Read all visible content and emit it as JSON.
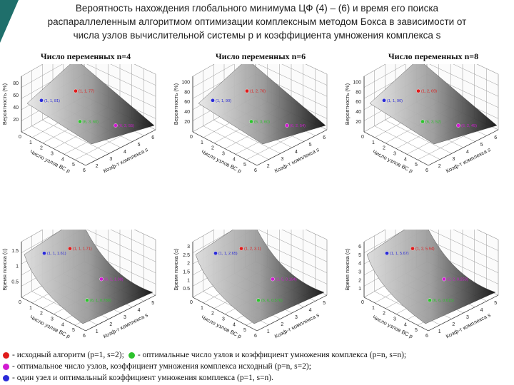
{
  "slide": {
    "title_lines": [
      "Вероятность нахождения глобального минимума ЦФ (4) – (6) и время его поиска",
      "распараллеленным алгоритмом оптимизации комплексным методом Бокса в зависимости от",
      "числа узлов вычислительной системы p и коэффициента умножения комплекса s"
    ],
    "columns": [
      "Число переменных n=4",
      "Число переменных n=6",
      "Число переменных n=8"
    ],
    "colors": {
      "red": "#e01b1b",
      "green": "#2ec22e",
      "magenta": "#d21ad2",
      "blue": "#2a2ad8",
      "accent": "#1f6f6b"
    }
  },
  "plots": [
    {
      "ylabel": "Вероятность (%)",
      "xaxis": "Число узлов ВС p",
      "zaxis": "Коэф-т комплекса s",
      "yticks": [
        "20",
        "40",
        "60",
        "80"
      ],
      "xticks": [
        "0",
        "1",
        "2",
        "3",
        "4",
        "5",
        "6"
      ],
      "zticks": [
        "2",
        "3",
        "4",
        "5",
        "6"
      ],
      "points": [
        {
          "color": "blue",
          "label": "(1, 1, 81)"
        },
        {
          "color": "red",
          "label": "(1, 1, 77)"
        },
        {
          "color": "green",
          "label": "(6, 3, 60)"
        },
        {
          "color": "magenta",
          "label": "(6, 2, 55)"
        }
      ]
    },
    {
      "ylabel": "Вероятность (%)",
      "xaxis": "Число узлов ВС p",
      "zaxis": "Коэф-т комплекса s",
      "yticks": [
        "20",
        "40",
        "60",
        "80",
        "100"
      ],
      "xticks": [
        "0",
        "1",
        "2",
        "3",
        "4",
        "5",
        "6"
      ],
      "zticks": [
        "2",
        "3",
        "4",
        "5",
        "6"
      ],
      "points": [
        {
          "color": "blue",
          "label": "(1, 1, 90)"
        },
        {
          "color": "red",
          "label": "(1, 2, 70)"
        },
        {
          "color": "green",
          "label": "(6, 3, 60)"
        },
        {
          "color": "magenta",
          "label": "(6, 2, 54)"
        }
      ]
    },
    {
      "ylabel": "Вероятность (%)",
      "xaxis": "Число узлов ВС p",
      "zaxis": "Коэф-т комплекса s",
      "yticks": [
        "20",
        "40",
        "60",
        "80",
        "100"
      ],
      "xticks": [
        "0",
        "1",
        "2",
        "3",
        "4",
        "5",
        "6"
      ],
      "zticks": [
        "2",
        "3",
        "4",
        "5",
        "6"
      ],
      "points": [
        {
          "color": "blue",
          "label": "(1, 1, 90)"
        },
        {
          "color": "red",
          "label": "(1, 2, 69)"
        },
        {
          "color": "green",
          "label": "(6, 3, 52)"
        },
        {
          "color": "magenta",
          "label": "(6, 2, 45)"
        }
      ]
    },
    {
      "ylabel": "Время поиска (с)",
      "xaxis": "Число узлов ВС p",
      "zaxis": "Коэф-т комплекса s",
      "yticks": [
        "0.5",
        "1",
        "1.5"
      ],
      "xticks": [
        "0",
        "1",
        "2",
        "3",
        "4",
        "5",
        "6"
      ],
      "zticks": [
        "1",
        "2",
        "3",
        "4",
        "5"
      ],
      "points": [
        {
          "color": "red",
          "label": "(1, 1, 1.71)"
        },
        {
          "color": "blue",
          "label": "(1, 1, 1.61)"
        },
        {
          "color": "magenta",
          "label": "(6, 1, 1.08)"
        },
        {
          "color": "green",
          "label": "(6, 1, 0.789)"
        }
      ]
    },
    {
      "ylabel": "Время поиска (с)",
      "xaxis": "Число узлов ВС p",
      "zaxis": "Коэф-т комплекса s",
      "yticks": [
        "0.5",
        "1",
        "1.5",
        "2",
        "2.5",
        "3"
      ],
      "xticks": [
        "0",
        "1",
        "2",
        "3",
        "4",
        "5",
        "6"
      ],
      "zticks": [
        "1",
        "2",
        "3",
        "4",
        "5"
      ],
      "points": [
        {
          "color": "red",
          "label": "(1, 2, 3.1)"
        },
        {
          "color": "blue",
          "label": "(1, 1, 2.65)"
        },
        {
          "color": "magenta",
          "label": "(2, 5, 0.194)"
        },
        {
          "color": "green",
          "label": "(6, 6, 0.576)"
        }
      ]
    },
    {
      "ylabel": "Время поиска (с)",
      "xaxis": "Число узлов ВС p",
      "zaxis": "Коэф-т комплекса s",
      "yticks": [
        "1",
        "2",
        "3",
        "4",
        "5",
        "6"
      ],
      "xticks": [
        "0",
        "1",
        "2",
        "3",
        "4",
        "5",
        "6"
      ],
      "zticks": [
        "1",
        "2",
        "3",
        "4",
        "5"
      ],
      "points": [
        {
          "color": "red",
          "label": "(1, 2, 5.94)"
        },
        {
          "color": "blue",
          "label": "(1, 1, 5.67)"
        },
        {
          "color": "magenta",
          "label": "(2, 2, 0.253)"
        },
        {
          "color": "green",
          "label": "(6, 6, 0.615)"
        }
      ]
    }
  ],
  "legend": {
    "row1_a": "- исходный алгоритм (p=1, s=2);",
    "row1_b": "- оптимальные число узлов и коэффициент умножения комплекса (p=n, s=n);",
    "row2": "- оптимальное число узлов, коэффициент умножения комплекса исходный (p=n, s=2);",
    "row3": "- один узел и оптимальный коэффициент умножения комплекса (p=1, s=n)."
  }
}
